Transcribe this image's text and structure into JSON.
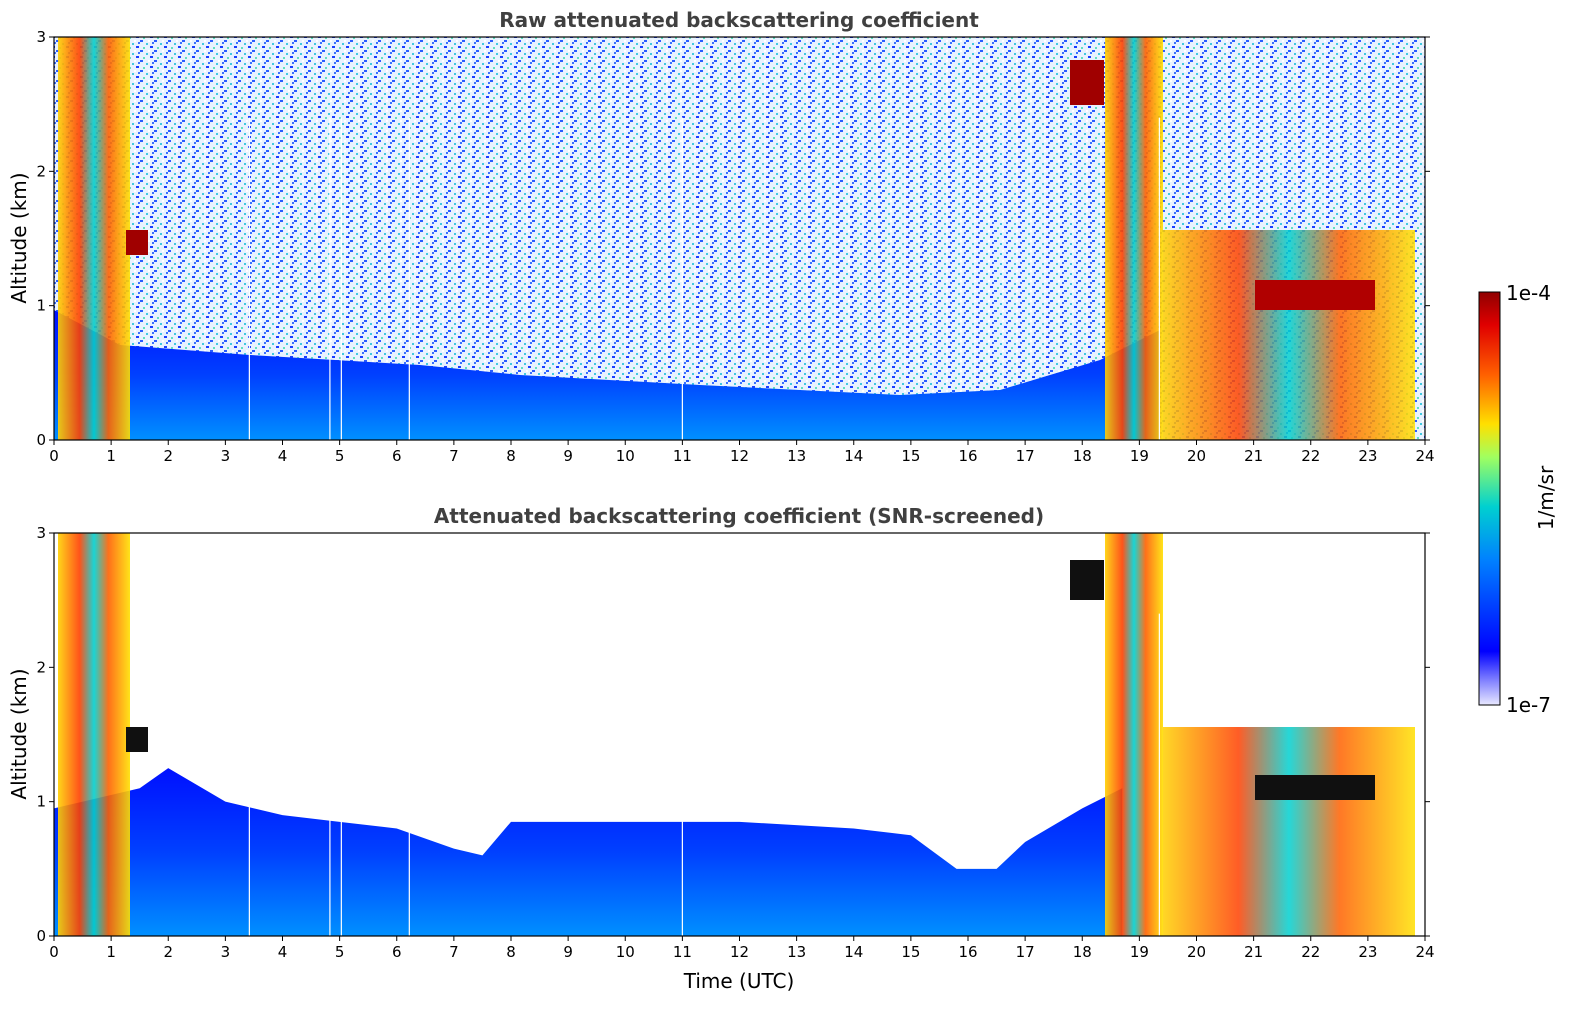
{
  "chart_data": [
    {
      "type": "heatmap",
      "title": "Raw attenuated backscattering coefficient",
      "xlabel": "",
      "ylabel": "Altitude (km)",
      "xlim": [
        0,
        24
      ],
      "ylim": [
        0,
        3
      ],
      "xticks": [
        "0",
        "1",
        "2",
        "3",
        "4",
        "5",
        "6",
        "7",
        "8",
        "9",
        "10",
        "11",
        "12",
        "13",
        "14",
        "15",
        "16",
        "17",
        "18",
        "19",
        "20",
        "21",
        "22",
        "23",
        "24"
      ],
      "yticks": [
        "0",
        "1",
        "2",
        "3"
      ],
      "features": [
        {
          "name": "boundary-layer aerosol",
          "x_range": [
            0,
            19.3
          ],
          "top_km": [
            0.9,
            0.65,
            0.55,
            0.45,
            0.4,
            0.35,
            0.6,
            0.9
          ]
        },
        {
          "name": "early cloud",
          "x_range": [
            0.1,
            1.5
          ],
          "alt_range": [
            0,
            3
          ]
        },
        {
          "name": "evening cloud",
          "x_range": [
            18.5,
            23.9
          ],
          "alt_range": [
            0,
            3
          ]
        },
        {
          "name": "layer at 1.1 km",
          "x_range": [
            21,
            23
          ],
          "alt_km": 1.1
        }
      ],
      "gaps_x": [
        3.42,
        4.83,
        5.03,
        6.22,
        11.0,
        19.35
      ]
    },
    {
      "type": "heatmap",
      "title": "Attenuated backscattering coefficient (SNR-screened)",
      "xlabel": "Time (UTC)",
      "ylabel": "Altitude (km)",
      "xlim": [
        0,
        24
      ],
      "ylim": [
        0,
        3
      ],
      "xticks": [
        "0",
        "1",
        "2",
        "3",
        "4",
        "5",
        "6",
        "7",
        "8",
        "9",
        "10",
        "11",
        "12",
        "13",
        "14",
        "15",
        "16",
        "17",
        "18",
        "19",
        "20",
        "21",
        "22",
        "23",
        "24"
      ],
      "yticks": [
        "0",
        "1",
        "2",
        "3"
      ],
      "boundary_layer_top_km": {
        "x": [
          0,
          1.5,
          2,
          3,
          4,
          5,
          6,
          7,
          7.5,
          8,
          10,
          12,
          14,
          15,
          15.8,
          16.5,
          17,
          18,
          18.7
        ],
        "top": [
          0.95,
          1.1,
          1.25,
          1.0,
          0.9,
          0.85,
          0.8,
          0.65,
          0.6,
          0.85,
          0.85,
          0.85,
          0.8,
          0.75,
          0.5,
          0.5,
          0.7,
          0.95,
          1.1
        ]
      },
      "gaps_x": [
        3.42,
        4.83,
        5.03,
        6.22,
        11.0,
        19.35
      ]
    }
  ],
  "colorbar": {
    "max_label": "1e-4",
    "min_label": "1e-7",
    "label": "1/m/sr",
    "colors": [
      "#e8e8ff",
      "#0000ff",
      "#00c0ff",
      "#ffe000",
      "#ff4000",
      "#900000"
    ]
  }
}
